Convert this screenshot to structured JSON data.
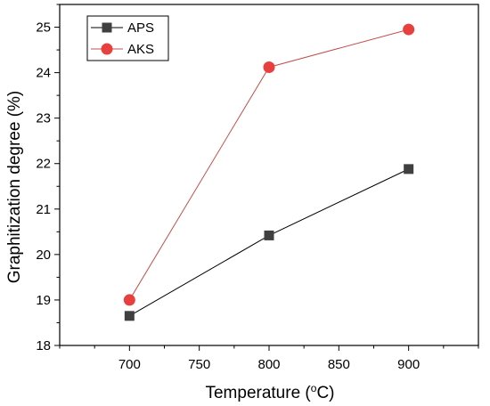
{
  "chart_data": {
    "type": "line",
    "xlabel": "Temperature (",
    "xlabel_unit_sup": "o",
    "xlabel_unit": "C)",
    "ylabel": "Graphitization degree (%)",
    "xlim": [
      650,
      950
    ],
    "ylim": [
      18,
      25.5
    ],
    "xticks": [
      700,
      750,
      800,
      850,
      900
    ],
    "yticks": [
      18,
      19,
      20,
      21,
      22,
      23,
      24,
      25
    ],
    "legend_position": "top-left",
    "series": [
      {
        "name": "APS",
        "marker": "square",
        "color": "#404040",
        "line_color": "#000000",
        "x": [
          700,
          800,
          900
        ],
        "y": [
          18.65,
          20.42,
          21.88
        ]
      },
      {
        "name": "AKS",
        "marker": "circle",
        "color": "#e8403e",
        "line_color": "#c0504d",
        "x": [
          700,
          800,
          900
        ],
        "y": [
          19.0,
          24.12,
          24.95
        ]
      }
    ]
  }
}
